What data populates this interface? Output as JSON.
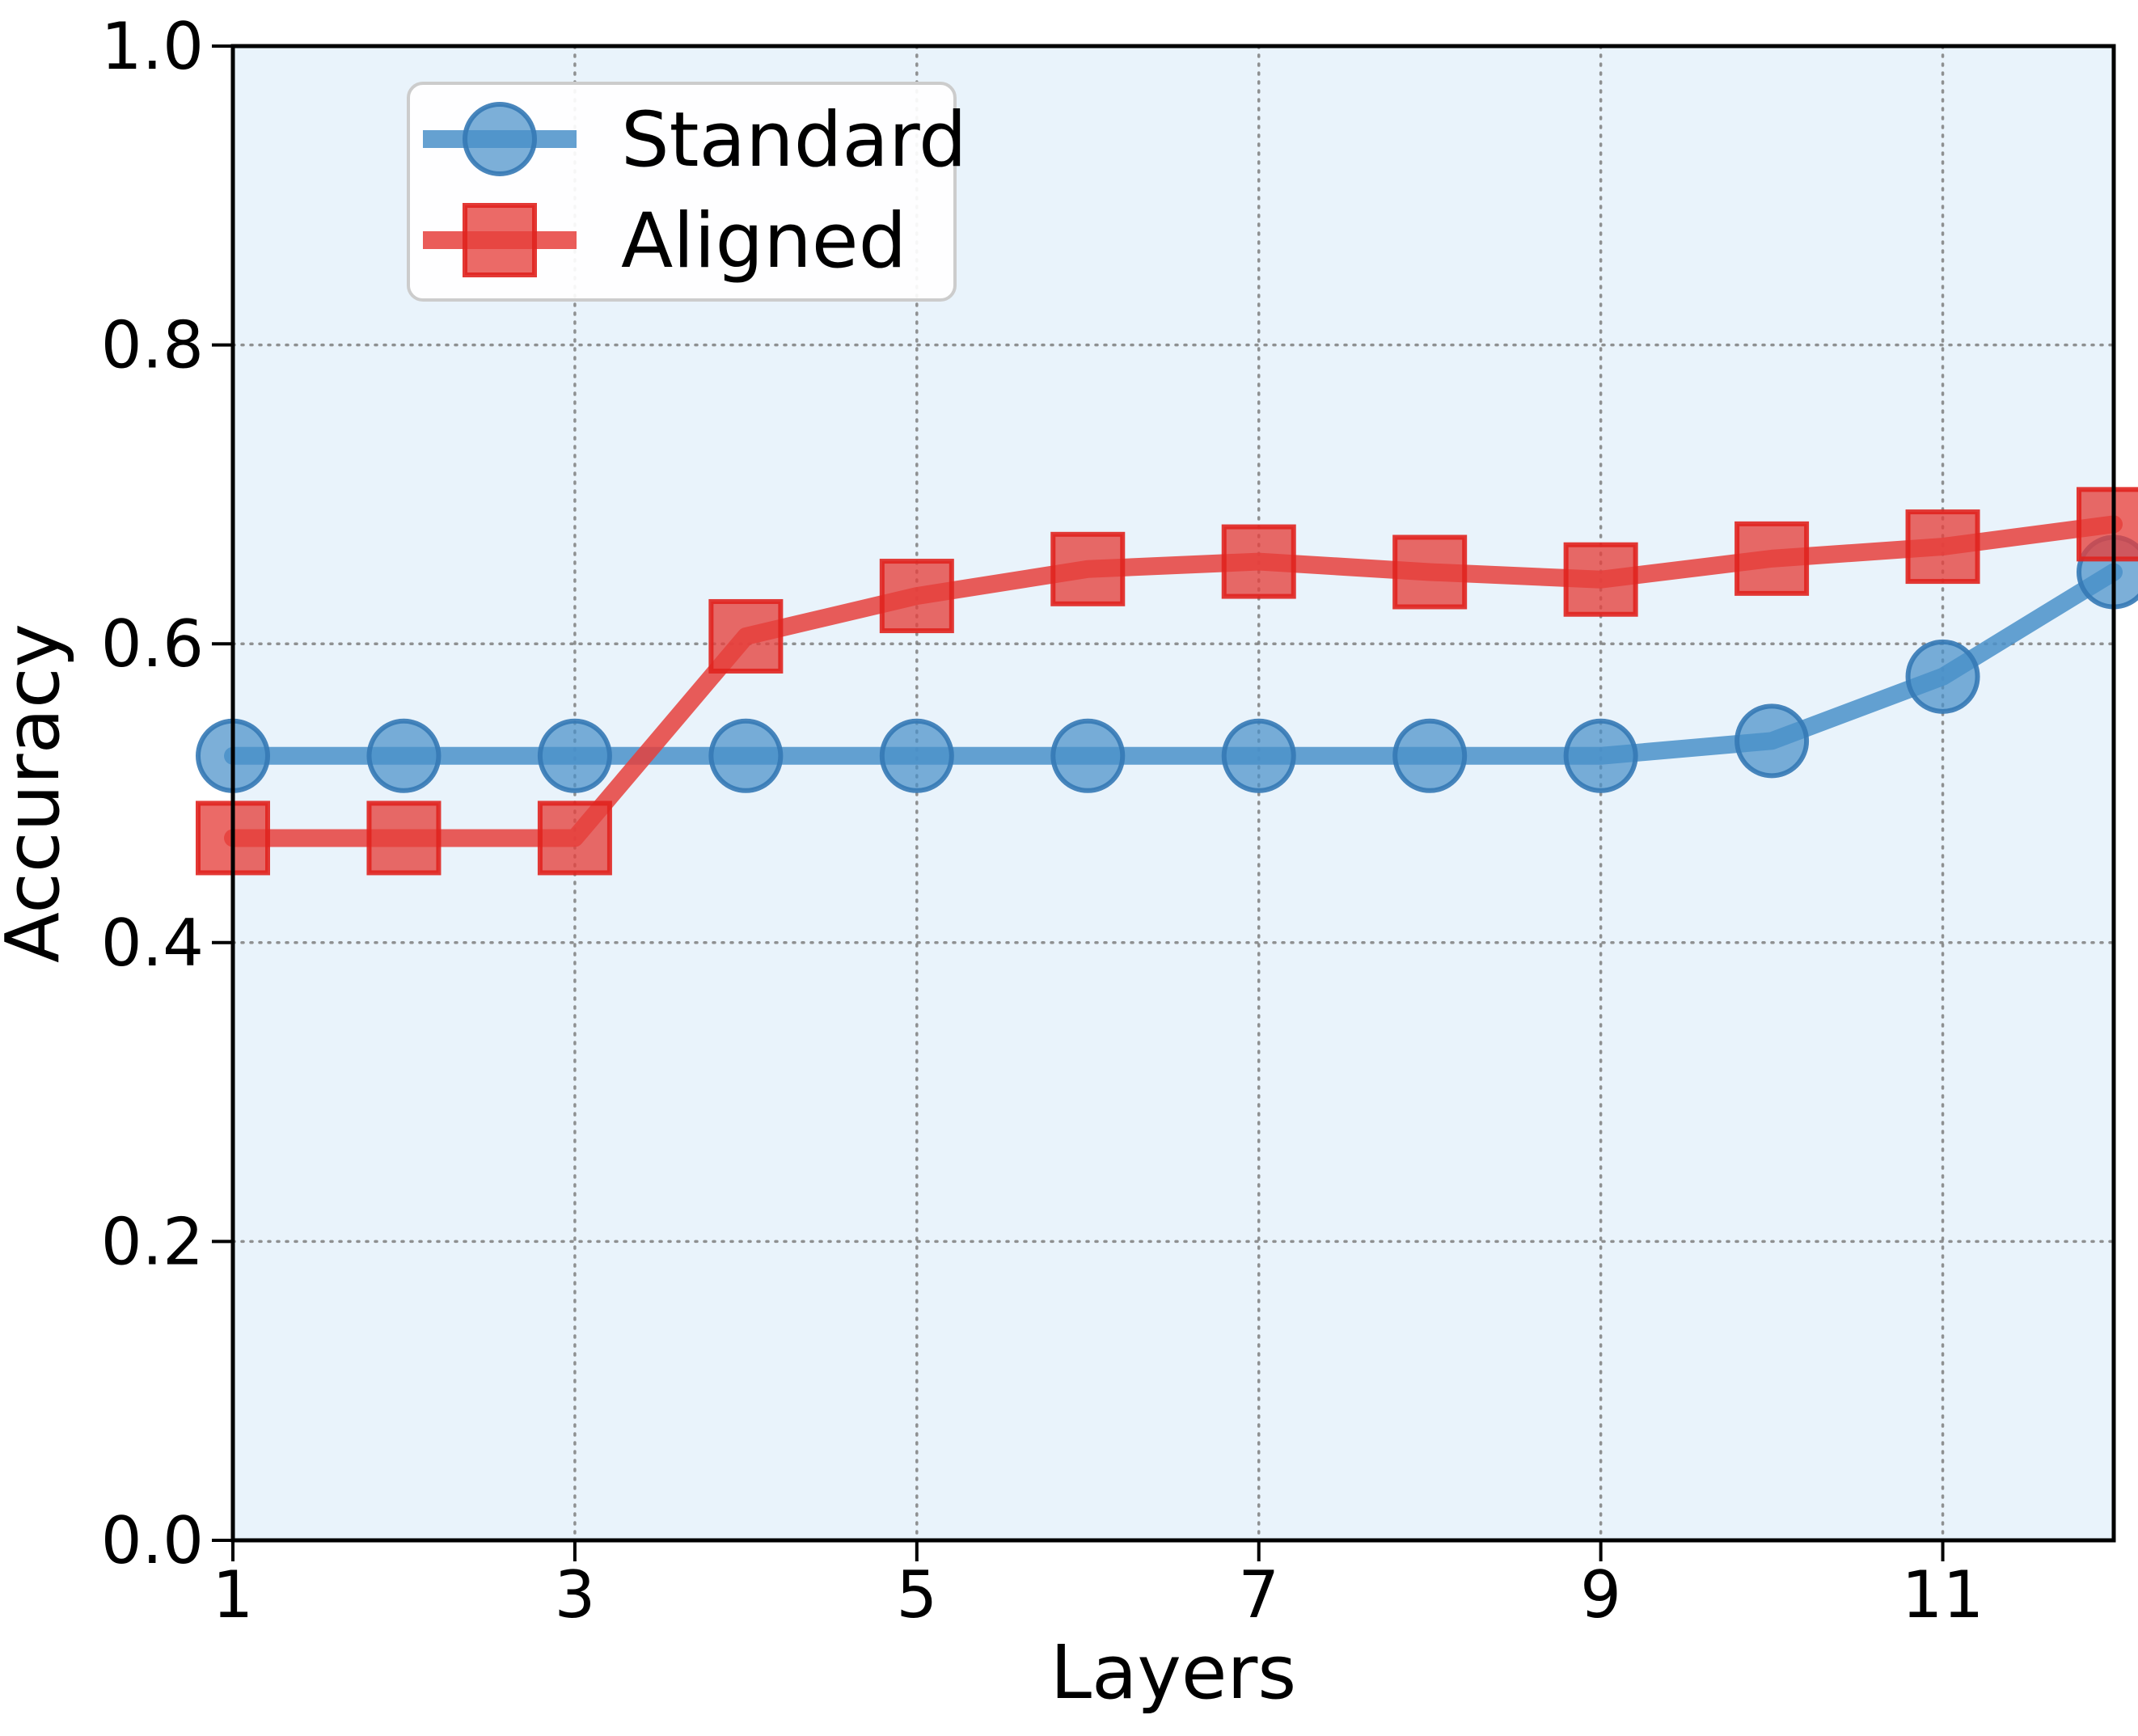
{
  "figure": {
    "background": "#ffffff"
  },
  "axes": {
    "xlabel": "Layers",
    "ylabel": "Accuracy",
    "plot_bg": "#e9f3fb",
    "spine_color": "#000000",
    "grid_color": "#7f7f7f",
    "tick_color": "#000000"
  },
  "legend": {
    "items": [
      {
        "label": "Standard",
        "marker": "circle"
      },
      {
        "label": "Aligned",
        "marker": "square"
      }
    ]
  },
  "chart_data": {
    "type": "line",
    "title": "",
    "xlabel": "Layers",
    "ylabel": "Accuracy",
    "x": [
      1,
      2,
      3,
      4,
      5,
      6,
      7,
      8,
      9,
      10,
      11,
      12
    ],
    "series": [
      {
        "name": "Standard",
        "marker": "circle",
        "color": "#4a90c9",
        "edge_color": "#3579b5",
        "values": [
          0.525,
          0.525,
          0.525,
          0.525,
          0.525,
          0.525,
          0.525,
          0.525,
          0.525,
          0.535,
          0.578,
          0.648
        ]
      },
      {
        "name": "Aligned",
        "marker": "square",
        "color": "#e6403c",
        "edge_color": "#e0241f",
        "values": [
          0.47,
          0.47,
          0.47,
          0.605,
          0.632,
          0.65,
          0.655,
          0.648,
          0.643,
          0.657,
          0.665,
          0.68
        ]
      }
    ],
    "xlim": [
      1,
      12
    ],
    "ylim": [
      0.0,
      1.0
    ],
    "x_ticks": [
      1,
      3,
      5,
      7,
      9,
      11
    ],
    "y_ticks": [
      0.0,
      0.2,
      0.4,
      0.6,
      0.8,
      1.0
    ],
    "grid": true,
    "legend_position": "upper left"
  }
}
